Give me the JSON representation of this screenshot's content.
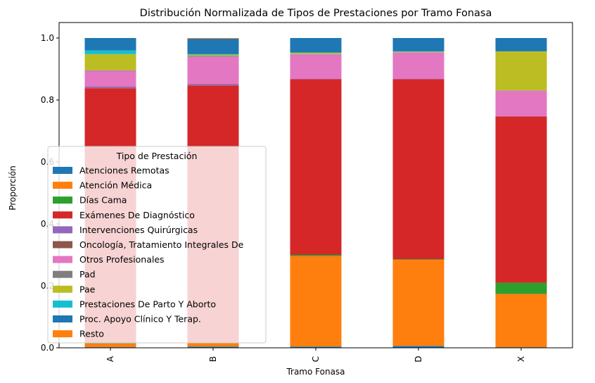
{
  "chart_data": {
    "type": "bar",
    "stacked": true,
    "title": "Distribución Normalizada de Tipos de Prestaciones por Tramo Fonasa",
    "xlabel": "Tramo Fonasa",
    "ylabel": "Proporción",
    "ylim": [
      0,
      1.05
    ],
    "yticks": [
      "0.0",
      "0.2",
      "0.4",
      "0.6",
      "0.8",
      "1.0"
    ],
    "categories": [
      "A",
      "B",
      "C",
      "D",
      "X"
    ],
    "legend": {
      "title": "Tipo de Prestación",
      "placement": "center-left"
    },
    "series": [
      {
        "name": "Atenciones Remotas",
        "color": "#1f77b4",
        "values": [
          0.002,
          0.004,
          0.004,
          0.006,
          0.002
        ]
      },
      {
        "name": "Atención Médica",
        "color": "#ff7f0e",
        "values": [
          0.012,
          0.012,
          0.292,
          0.278,
          0.172
        ]
      },
      {
        "name": "Días Cama",
        "color": "#2ca02c",
        "values": [
          0.002,
          0.002,
          0.004,
          0.002,
          0.036
        ]
      },
      {
        "name": "Exámenes De Diagnóstico",
        "color": "#d62728",
        "values": [
          0.822,
          0.829,
          0.567,
          0.581,
          0.537
        ]
      },
      {
        "name": "Intervenciones Quirúrgicas",
        "color": "#9467bd",
        "values": [
          0.004,
          0.004,
          0.001,
          0.001,
          0.001
        ]
      },
      {
        "name": "Oncología, Tratamiento Integrales De",
        "color": "#8c564b",
        "values": [
          0.001,
          0.001,
          0.0,
          0.0,
          0.0
        ]
      },
      {
        "name": "Otros Profesionales",
        "color": "#e377c2",
        "values": [
          0.051,
          0.088,
          0.079,
          0.085,
          0.082
        ]
      },
      {
        "name": "Pad",
        "color": "#7f7f7f",
        "values": [
          0.002,
          0.002,
          0.001,
          0.001,
          0.001
        ]
      },
      {
        "name": "Pae",
        "color": "#bcbd22",
        "values": [
          0.052,
          0.004,
          0.004,
          0.002,
          0.126
        ]
      },
      {
        "name": "Prestaciones De Parto Y Aborto",
        "color": "#17becf",
        "values": [
          0.012,
          0.002,
          0.001,
          0.001,
          0.0
        ]
      },
      {
        "name": "Proc. Apoyo Clínico Y Terap.",
        "color": "#1f77b4",
        "values": [
          0.04,
          0.05,
          0.047,
          0.043,
          0.043
        ]
      },
      {
        "name": "Resto",
        "color": "#ff7f0e",
        "values": [
          0.0,
          0.002,
          0.0,
          0.0,
          0.0
        ]
      }
    ]
  }
}
